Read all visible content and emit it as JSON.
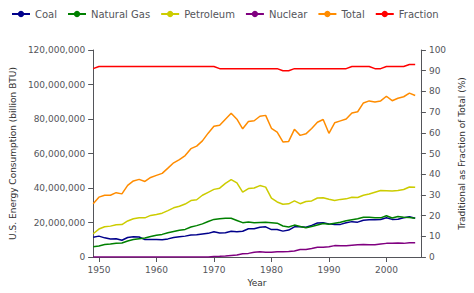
{
  "chart_data": {
    "type": "line",
    "x_label": "Year",
    "y_label": "U.S. Energy Consumption (billion BTU)",
    "y2_label": "Traditional as Fraction of Total (%)",
    "x": [
      1949,
      1950,
      1951,
      1952,
      1953,
      1954,
      1955,
      1956,
      1957,
      1958,
      1959,
      1960,
      1961,
      1962,
      1963,
      1964,
      1965,
      1966,
      1967,
      1968,
      1969,
      1970,
      1971,
      1972,
      1973,
      1974,
      1975,
      1976,
      1977,
      1978,
      1979,
      1980,
      1981,
      1982,
      1983,
      1984,
      1985,
      1986,
      1987,
      1988,
      1989,
      1990,
      1991,
      1992,
      1993,
      1994,
      1995,
      1996,
      1997,
      1998,
      1999,
      2000,
      2001,
      2002,
      2003,
      2004,
      2005
    ],
    "series": [
      {
        "name": "Coal",
        "color": "#00008B",
        "values": [
          11500000,
          12100000,
          11100000,
          10400000,
          10600000,
          9700000,
          11300000,
          11800000,
          11600000,
          10100000,
          10100000,
          10100000,
          10000000,
          10500000,
          11300000,
          11700000,
          12100000,
          12700000,
          12900000,
          13300000,
          13700000,
          14600000,
          13900000,
          14100000,
          14900000,
          14700000,
          14900000,
          16400000,
          16400000,
          17200000,
          17500000,
          15900000,
          15900000,
          15000000,
          15600000,
          17500000,
          17500000,
          17300000,
          18300000,
          19700000,
          19900000,
          19200000,
          18800000,
          18900000,
          19800000,
          20500000,
          20200000,
          21300000,
          21600000,
          21600000,
          21700000,
          22700000,
          21800000,
          21900000,
          22800000,
          23300000,
          22500000
        ]
      },
      {
        "name": "Natural Gas",
        "color": "#008000",
        "values": [
          5900000,
          6400000,
          7200000,
          7500000,
          8000000,
          8100000,
          9300000,
          10100000,
          10600000,
          11000000,
          11900000,
          12600000,
          13100000,
          14100000,
          14800000,
          15500000,
          16000000,
          17400000,
          18200000,
          19200000,
          20600000,
          21800000,
          22200000,
          22500000,
          22500000,
          21200000,
          19900000,
          20300000,
          19900000,
          20000000,
          20100000,
          19900000,
          19600000,
          18000000,
          17400000,
          18500000,
          17700000,
          16900000,
          17700000,
          18600000,
          19400000,
          19000000,
          19600000,
          20100000,
          21000000,
          21600000,
          22200000,
          23100000,
          23100000,
          22700000,
          22700000,
          23900000,
          22600000,
          23500000,
          23100000,
          22900000,
          22500000
        ]
      },
      {
        "name": "Petroleum",
        "color": "#CCCC00",
        "values": [
          13500000,
          16200000,
          17500000,
          17900000,
          18700000,
          18800000,
          20900000,
          22200000,
          22800000,
          22700000,
          24100000,
          24600000,
          25400000,
          26900000,
          28500000,
          29400000,
          30700000,
          32700000,
          33200000,
          35800000,
          37500000,
          39200000,
          39900000,
          42700000,
          44900000,
          43000000,
          37600000,
          39700000,
          40000000,
          41400000,
          40500000,
          34100000,
          31900000,
          30600000,
          30800000,
          32500000,
          30900000,
          32200000,
          32500000,
          34200000,
          34400000,
          33500000,
          32800000,
          33400000,
          33700000,
          34600000,
          34500000,
          35800000,
          36500000,
          37500000,
          38500000,
          38400000,
          38200000,
          38500000,
          39100000,
          40600000,
          40400000
        ]
      },
      {
        "name": "Nuclear",
        "color": "#800080",
        "values": [
          0,
          0,
          0,
          0,
          0,
          0,
          0,
          0,
          0,
          0,
          0,
          0,
          0,
          0,
          0,
          0,
          0,
          0,
          0,
          0,
          0,
          239000,
          400000,
          580000,
          910000,
          1100000,
          1900000,
          2100000,
          2700000,
          3000000,
          2800000,
          2700000,
          3000000,
          3100000,
          3200000,
          3500000,
          4400000,
          4400000,
          4900000,
          5600000,
          5600000,
          6000000,
          6600000,
          6500000,
          6500000,
          6800000,
          7100000,
          7200000,
          7100000,
          7100000,
          7600000,
          7900000,
          8000000,
          8100000,
          7900000,
          8200000,
          8200000
        ]
      },
      {
        "name": "Total",
        "color": "#FF8C00",
        "values": [
          30900000,
          34700000,
          35800000,
          35800000,
          37300000,
          36600000,
          41500000,
          44100000,
          45000000,
          43800000,
          46100000,
          47300000,
          48500000,
          51500000,
          54600000,
          56500000,
          58800000,
          62800000,
          64300000,
          67300000,
          71800000,
          75800000,
          76400000,
          79900000,
          83300000,
          79900000,
          74300000,
          78500000,
          79000000,
          81600000,
          82100000,
          74600000,
          72400000,
          66700000,
          67000000,
          74000000,
          70500000,
          71400000,
          74500000,
          78100000,
          79700000,
          71700000,
          77800000,
          78900000,
          80000000,
          83500000,
          84200000,
          89300000,
          90500000,
          89900000,
          90500000,
          93200000,
          90600000,
          92000000,
          92900000,
          95000000,
          93600000
        ]
      },
      {
        "name": "Fraction",
        "color": "#FF0000",
        "axis": "y2",
        "values": [
          91,
          92,
          92,
          92,
          92,
          92,
          92,
          92,
          92,
          92,
          92,
          92,
          92,
          92,
          92,
          92,
          92,
          92,
          92,
          92,
          92,
          92,
          91,
          91,
          91,
          91,
          91,
          91,
          91,
          91,
          91,
          91,
          91,
          90,
          90,
          91,
          91,
          91,
          91,
          91,
          91,
          91,
          91,
          91,
          91,
          92,
          92,
          92,
          92,
          91,
          91,
          92,
          92,
          92,
          92,
          93,
          93
        ]
      }
    ],
    "xlim": [
      1949,
      2006
    ],
    "xticks": [
      1950,
      1960,
      1970,
      1980,
      1990,
      2000
    ],
    "ylim": [
      0,
      120000000
    ],
    "yticks": [
      0,
      {
        "value": 20000000,
        "label": "20,000,000"
      },
      {
        "value": 40000000,
        "label": "40,000,000"
      },
      {
        "value": 60000000,
        "label": "60,000,000"
      },
      {
        "value": 80000000,
        "label": "80,000,000"
      },
      {
        "value": 100000000,
        "label": "100,000,000"
      },
      {
        "value": 120000000,
        "label": "120,000,000"
      }
    ],
    "y2lim": [
      0,
      100
    ],
    "y2ticks": [
      0,
      10,
      20,
      30,
      40,
      50,
      60,
      70,
      80,
      90,
      100
    ],
    "grid": false,
    "legend": "upper left"
  }
}
